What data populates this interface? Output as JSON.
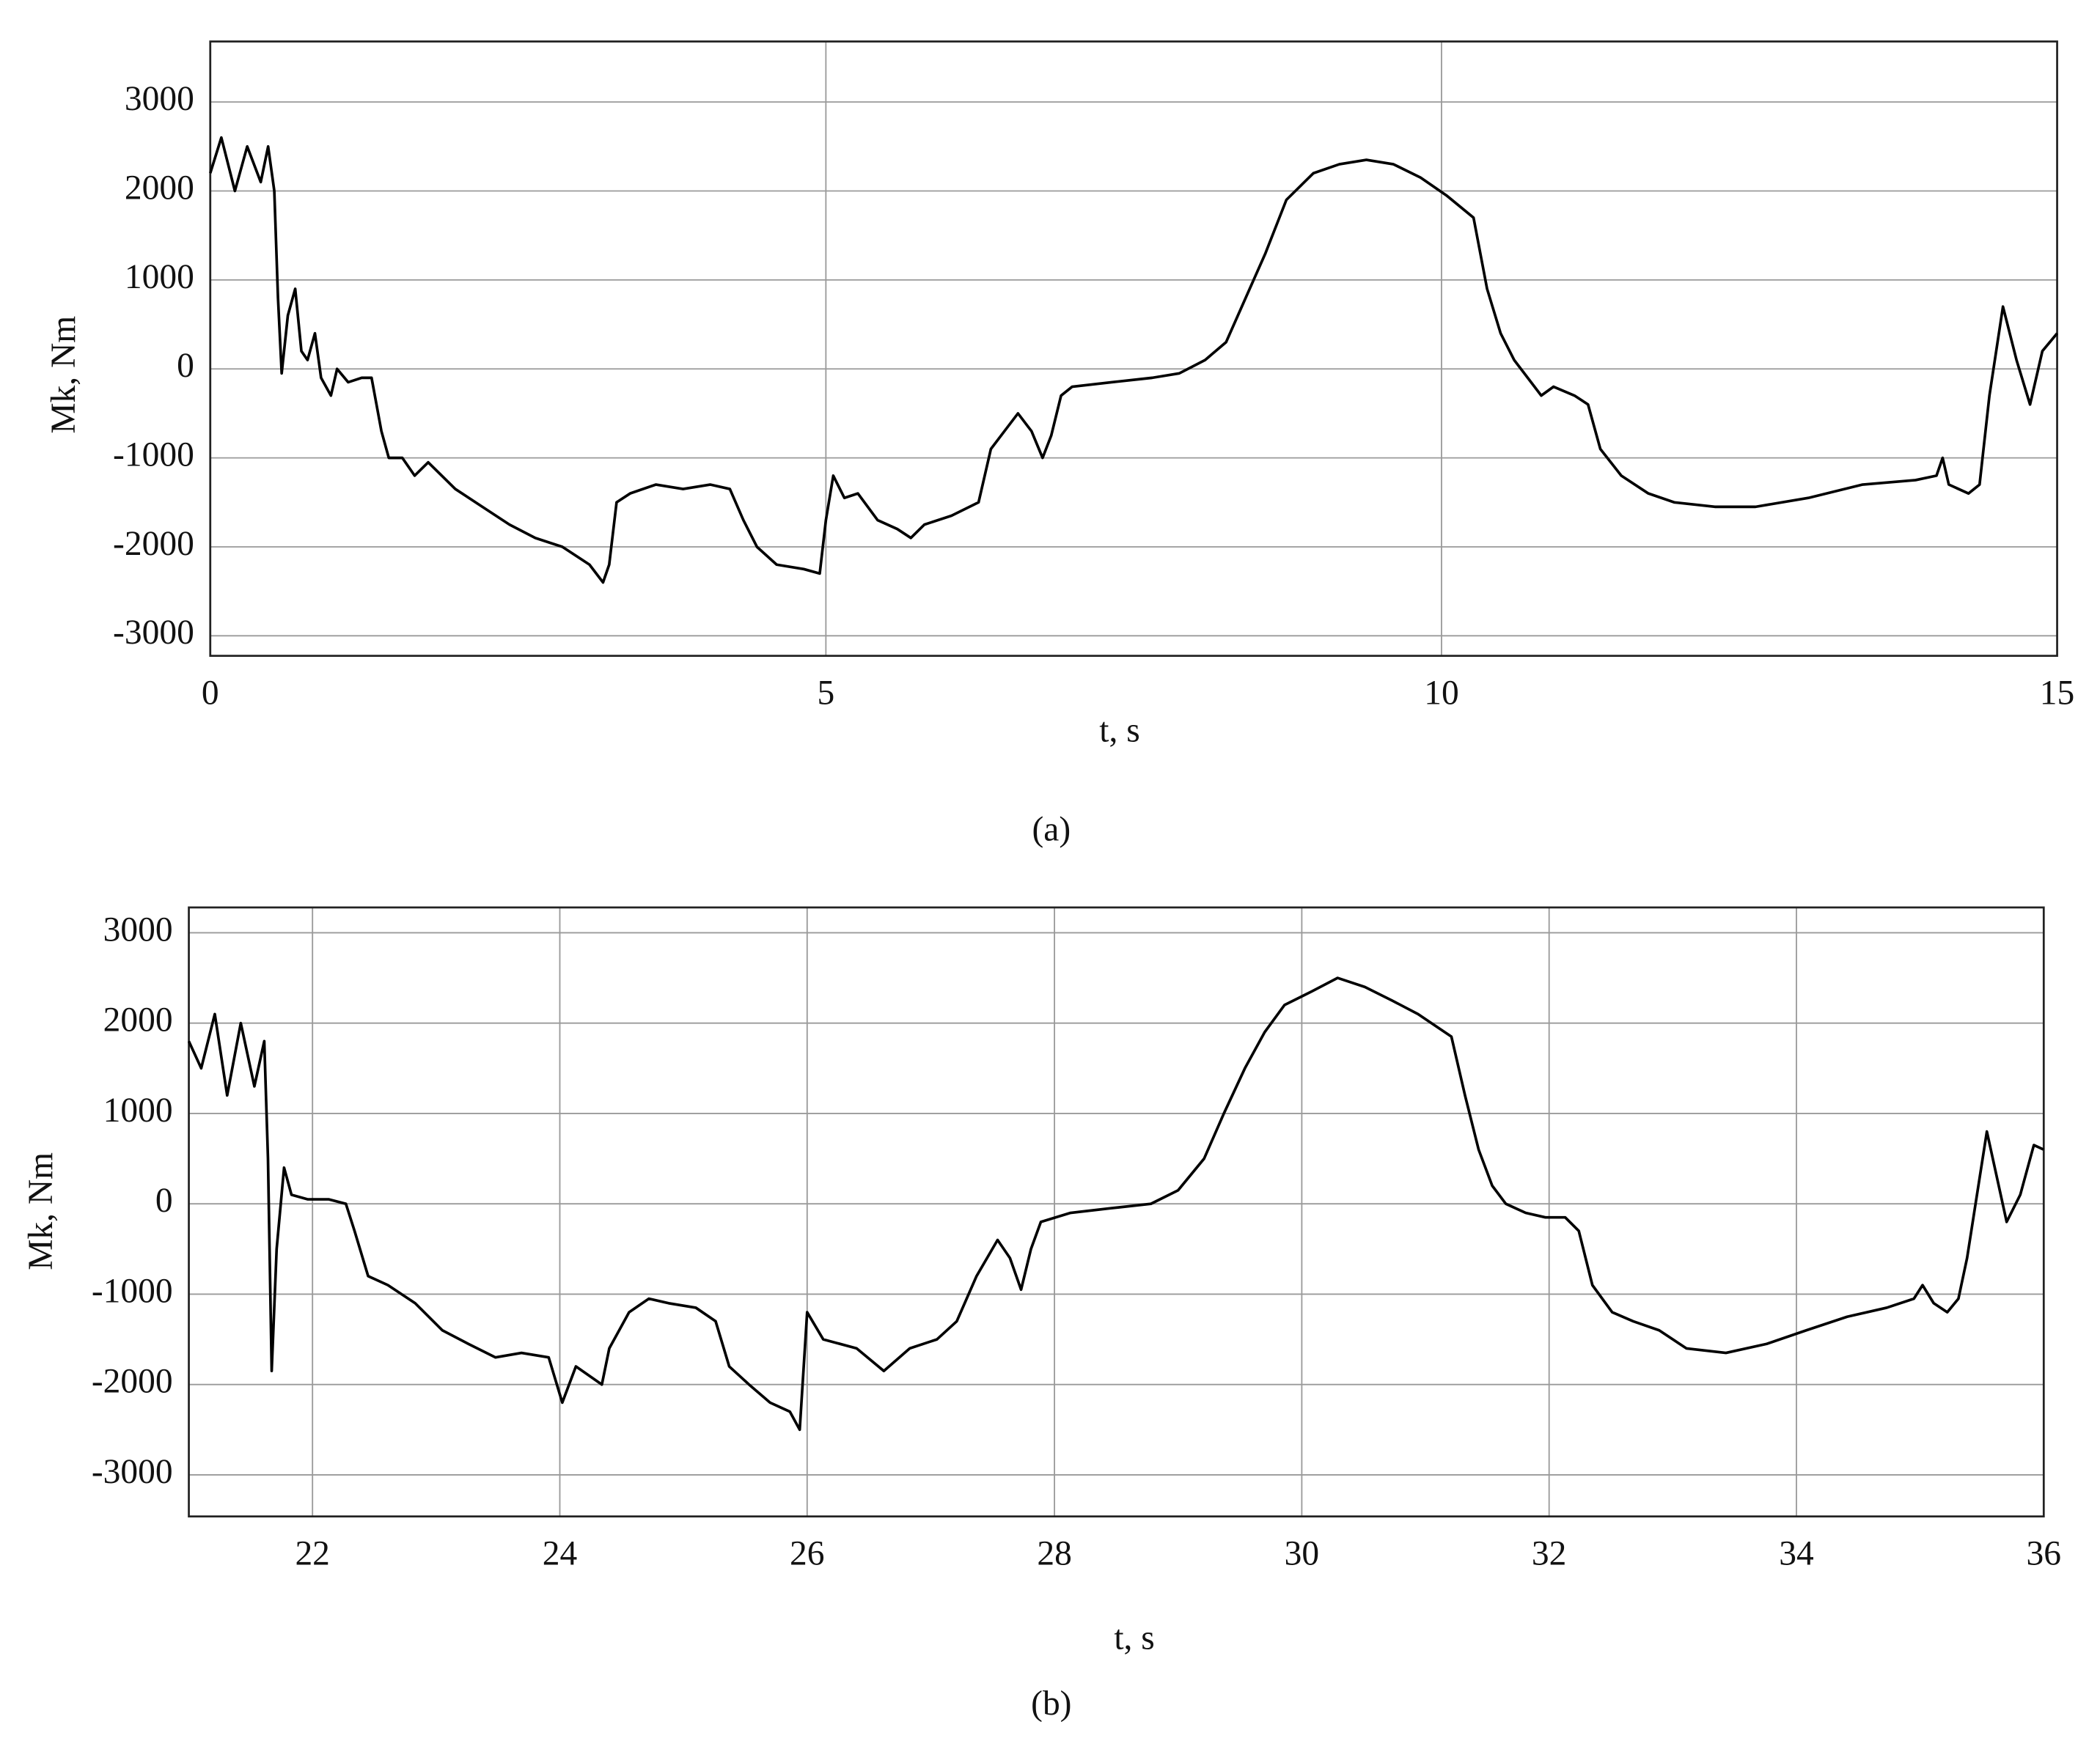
{
  "chart_data": [
    {
      "type": "line",
      "ylabel": "Mk, Nm",
      "xlabel": "t, s",
      "caption": "(a)",
      "color": "#000000",
      "grid": true,
      "xlim": [
        0,
        15
      ],
      "xticks": [
        0,
        5,
        10,
        15
      ],
      "ylim": [
        -3225,
        3680
      ],
      "yticks": [
        -3000,
        -2000,
        -1000,
        0,
        1000,
        2000,
        3000
      ],
      "x": [
        0,
        0.09,
        0.2,
        0.3,
        0.41,
        0.47,
        0.52,
        0.55,
        0.58,
        0.63,
        0.69,
        0.74,
        0.79,
        0.85,
        0.9,
        0.98,
        1.03,
        1.12,
        1.23,
        1.31,
        1.39,
        1.45,
        1.56,
        1.66,
        1.77,
        1.99,
        2.21,
        2.43,
        2.64,
        2.86,
        3.08,
        3.19,
        3.24,
        3.3,
        3.41,
        3.62,
        3.84,
        4.06,
        4.22,
        4.33,
        4.44,
        4.6,
        4.82,
        4.95,
        5.0,
        5.06,
        5.15,
        5.26,
        5.42,
        5.58,
        5.69,
        5.8,
        6.02,
        6.24,
        6.34,
        6.45,
        6.56,
        6.67,
        6.76,
        6.83,
        6.91,
        7.0,
        7.32,
        7.65,
        7.87,
        8.08,
        8.25,
        8.41,
        8.57,
        8.74,
        8.96,
        9.17,
        9.39,
        9.61,
        9.83,
        10.04,
        10.26,
        10.37,
        10.48,
        10.59,
        10.7,
        10.81,
        10.91,
        11.08,
        11.19,
        11.29,
        11.46,
        11.68,
        11.89,
        12.22,
        12.55,
        12.98,
        13.42,
        13.85,
        14.02,
        14.07,
        14.12,
        14.28,
        14.37,
        14.45,
        14.56,
        14.67,
        14.78,
        14.88,
        15.0
      ],
      "values": [
        2200,
        2600,
        2000,
        2500,
        2100,
        2500,
        2000,
        800,
        -50,
        600,
        900,
        200,
        100,
        400,
        -100,
        -300,
        0,
        -150,
        -100,
        -100,
        -700,
        -1000,
        -1000,
        -1200,
        -1050,
        -1350,
        -1550,
        -1750,
        -1900,
        -2000,
        -2200,
        -2400,
        -2200,
        -1500,
        -1400,
        -1300,
        -1350,
        -1300,
        -1350,
        -1700,
        -2000,
        -2200,
        -2250,
        -2300,
        -1700,
        -1200,
        -1450,
        -1400,
        -1700,
        -1800,
        -1900,
        -1750,
        -1650,
        -1500,
        -900,
        -700,
        -500,
        -700,
        -1000,
        -750,
        -300,
        -200,
        -150,
        -100,
        -50,
        100,
        300,
        800,
        1300,
        1900,
        2200,
        2300,
        2350,
        2300,
        2150,
        1950,
        1700,
        900,
        400,
        100,
        -100,
        -300,
        -200,
        -300,
        -400,
        -900,
        -1200,
        -1400,
        -1500,
        -1550,
        -1550,
        -1450,
        -1300,
        -1250,
        -1200,
        -1000,
        -1300,
        -1400,
        -1300,
        -300,
        700,
        100,
        -400,
        200,
        400
      ]
    },
    {
      "type": "line",
      "ylabel": "Mk, Nm",
      "xlabel": "t, s",
      "caption": "(b)",
      "color": "#000000",
      "grid": true,
      "xlim": [
        21,
        36
      ],
      "xticks": [
        22,
        24,
        26,
        28,
        30,
        32,
        34,
        36
      ],
      "ylim": [
        -3460,
        3280
      ],
      "yticks": [
        -3000,
        -2000,
        -1000,
        0,
        1000,
        2000,
        3000
      ],
      "x": [
        21,
        21.1,
        21.21,
        21.31,
        21.42,
        21.53,
        21.61,
        21.64,
        21.67,
        21.71,
        21.77,
        21.83,
        21.96,
        22.13,
        22.27,
        22.34,
        22.45,
        22.61,
        22.83,
        23.05,
        23.26,
        23.48,
        23.69,
        23.91,
        24.02,
        24.13,
        24.34,
        24.4,
        24.56,
        24.72,
        24.88,
        25.1,
        25.26,
        25.37,
        25.53,
        25.7,
        25.86,
        25.94,
        26.0,
        26.13,
        26.4,
        26.62,
        26.83,
        27.05,
        27.21,
        27.37,
        27.54,
        27.64,
        27.73,
        27.81,
        27.89,
        28.13,
        28.45,
        28.78,
        29.0,
        29.21,
        29.37,
        29.54,
        29.7,
        29.86,
        30.08,
        30.29,
        30.51,
        30.73,
        30.94,
        31.21,
        31.32,
        31.43,
        31.54,
        31.65,
        31.81,
        31.97,
        32.13,
        32.24,
        32.35,
        32.51,
        32.68,
        32.89,
        33.11,
        33.43,
        33.76,
        34.08,
        34.41,
        34.73,
        34.95,
        35.02,
        35.11,
        35.22,
        35.31,
        35.38,
        35.54,
        35.7,
        35.81,
        35.92,
        36.0
      ],
      "values": [
        1800,
        1500,
        2100,
        1200,
        2000,
        1300,
        1800,
        500,
        -1850,
        -500,
        400,
        100,
        50,
        50,
        0,
        -300,
        -800,
        -900,
        -1100,
        -1400,
        -1550,
        -1700,
        -1650,
        -1700,
        -2200,
        -1800,
        -2000,
        -1600,
        -1200,
        -1050,
        -1100,
        -1150,
        -1300,
        -1800,
        -2000,
        -2200,
        -2300,
        -2500,
        -1200,
        -1500,
        -1600,
        -1850,
        -1600,
        -1500,
        -1300,
        -800,
        -400,
        -600,
        -950,
        -500,
        -200,
        -100,
        -50,
        0,
        150,
        500,
        1000,
        1500,
        1900,
        2200,
        2350,
        2500,
        2400,
        2250,
        2100,
        1850,
        1200,
        600,
        200,
        0,
        -100,
        -150,
        -150,
        -300,
        -900,
        -1200,
        -1300,
        -1400,
        -1600,
        -1650,
        -1550,
        -1400,
        -1250,
        -1150,
        -1050,
        -900,
        -1100,
        -1200,
        -1050,
        -600,
        800,
        -200,
        100,
        650,
        600
      ]
    }
  ]
}
